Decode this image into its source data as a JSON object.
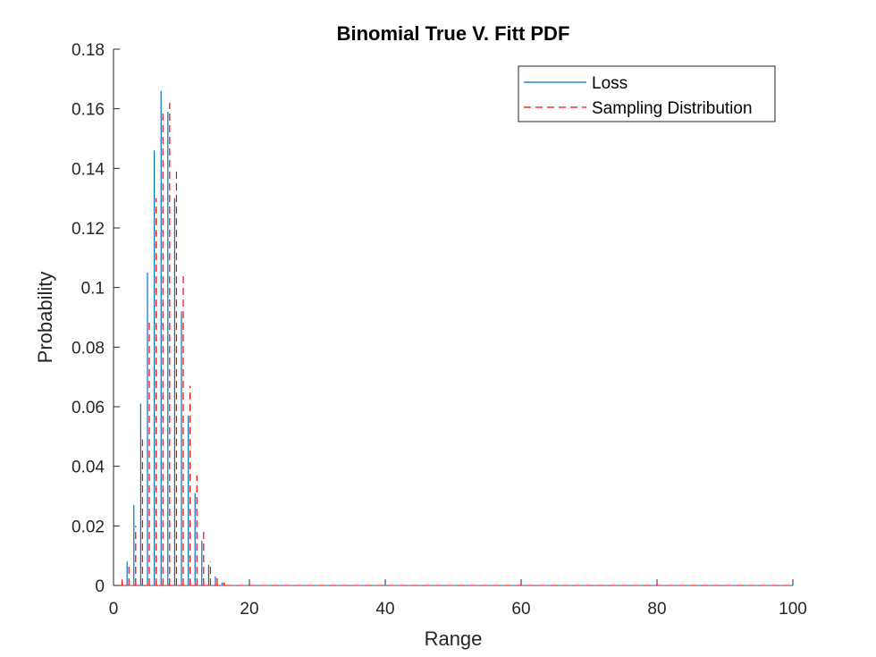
{
  "chart_data": {
    "type": "line",
    "title": "Binomial True V. Fitt PDF",
    "xlabel": "Range",
    "ylabel": "Probability",
    "xlim": [
      0,
      100
    ],
    "ylim": [
      0,
      0.18
    ],
    "xticks": [
      "0",
      "20",
      "40",
      "60",
      "80",
      "100"
    ],
    "yticks": [
      "0",
      "0.02",
      "0.04",
      "0.06",
      "0.08",
      "0.1",
      "0.12",
      "0.14",
      "0.16",
      "0.18"
    ],
    "grid": false,
    "legend_position": "top-right",
    "plot_style": "stem",
    "series": [
      {
        "name": "Loss",
        "color": "#0072BD",
        "line_style": "solid",
        "x": [
          1,
          2,
          3,
          4,
          5,
          6,
          7,
          8,
          9,
          10,
          11,
          12,
          13,
          14,
          15,
          16,
          17,
          18,
          19,
          20,
          21,
          22,
          23,
          24,
          25,
          26,
          27,
          28,
          29,
          30,
          31,
          32,
          33,
          34,
          35,
          36,
          37,
          38,
          39,
          40,
          41,
          42,
          43,
          44,
          45,
          46,
          47,
          48,
          49,
          50,
          51,
          52,
          53,
          54,
          55,
          56,
          57,
          58,
          59,
          60,
          61,
          62,
          63,
          64,
          65,
          66,
          67,
          68,
          69,
          70,
          71,
          72,
          73,
          74,
          75,
          76,
          77,
          78,
          79,
          80,
          81,
          82,
          83,
          84,
          85,
          86,
          87,
          88,
          89,
          90,
          91,
          92,
          93,
          94,
          95,
          96,
          97,
          98,
          99,
          100
        ],
        "y": [
          0.0,
          0.008,
          0.027,
          0.061,
          0.105,
          0.146,
          0.166,
          0.159,
          0.13,
          0.092,
          0.057,
          0.031,
          0.015,
          0.007,
          0.003,
          0.001,
          0.0,
          0.0,
          0.0,
          0.0,
          0.0,
          0.0,
          0.0,
          0.0,
          0.0,
          0.0,
          0.0,
          0.0,
          0.0,
          0.0,
          0.0,
          0.0,
          0.0,
          0.0,
          0.0,
          0.0,
          0.0,
          0.0,
          0.0,
          0.0,
          0.0,
          0.0,
          0.0,
          0.0,
          0.0,
          0.0,
          0.0,
          0.0,
          0.0,
          0.0,
          0.0,
          0.0,
          0.0,
          0.0,
          0.0,
          0.0,
          0.0,
          0.0,
          0.0,
          0.0,
          0.0,
          0.0,
          0.0,
          0.0,
          0.0,
          0.0,
          0.0,
          0.0,
          0.0,
          0.0,
          0.0,
          0.0,
          0.0,
          0.0,
          0.0,
          0.0,
          0.0,
          0.0,
          0.0,
          0.0,
          0.0,
          0.0,
          0.0,
          0.0,
          0.0,
          0.0,
          0.0,
          0.0,
          0.0,
          0.0,
          0.0,
          0.0,
          0.0,
          0.0,
          0.0,
          0.0,
          0.0,
          0.0,
          0.0,
          0.0
        ]
      },
      {
        "name": "Sampling Distribution",
        "color": "#FF0000",
        "line_style": "dashed",
        "x": [
          1,
          2,
          3,
          4,
          5,
          6,
          7,
          8,
          9,
          10,
          11,
          12,
          13,
          14,
          15,
          16,
          17,
          18,
          19,
          20,
          21,
          22,
          23,
          24,
          25,
          26,
          27,
          28,
          29,
          30,
          31,
          32,
          33,
          34,
          35,
          36,
          37,
          38,
          39,
          40,
          41,
          42,
          43,
          44,
          45,
          46,
          47,
          48,
          49,
          50,
          51,
          52,
          53,
          54,
          55,
          56,
          57,
          58,
          59,
          60,
          61,
          62,
          63,
          64,
          65,
          66,
          67,
          68,
          69,
          70,
          71,
          72,
          73,
          74,
          75,
          76,
          77,
          78,
          79,
          80,
          81,
          82,
          83,
          84,
          85,
          86,
          87,
          88,
          89,
          90,
          91,
          92,
          93,
          94,
          95,
          96,
          97,
          98,
          99,
          100
        ],
        "y": [
          0.002,
          0.007,
          0.02,
          0.049,
          0.089,
          0.13,
          0.16,
          0.162,
          0.14,
          0.104,
          0.067,
          0.037,
          0.018,
          0.008,
          0.003,
          0.001,
          0.0,
          0.0,
          0.0,
          0.0,
          0.0,
          0.0,
          0.0,
          0.0,
          0.0,
          0.0,
          0.0,
          0.0,
          0.0,
          0.0,
          0.0,
          0.0,
          0.0,
          0.0,
          0.0,
          0.0,
          0.0,
          0.0,
          0.0,
          0.0,
          0.0,
          0.0,
          0.0,
          0.0,
          0.0,
          0.0,
          0.0,
          0.0,
          0.0,
          0.0,
          0.0,
          0.0,
          0.0,
          0.0,
          0.0,
          0.0,
          0.0,
          0.0,
          0.0,
          0.0,
          0.0,
          0.0,
          0.0,
          0.0,
          0.0,
          0.0,
          0.0,
          0.0,
          0.0,
          0.0,
          0.0,
          0.0,
          0.0,
          0.0,
          0.0,
          0.0,
          0.0,
          0.0,
          0.0,
          0.0,
          0.0,
          0.0,
          0.0,
          0.0,
          0.0,
          0.0,
          0.0,
          0.0,
          0.0,
          0.0,
          0.0,
          0.0,
          0.0,
          0.0,
          0.0,
          0.0,
          0.0,
          0.0,
          0.0,
          0.0
        ]
      }
    ]
  }
}
